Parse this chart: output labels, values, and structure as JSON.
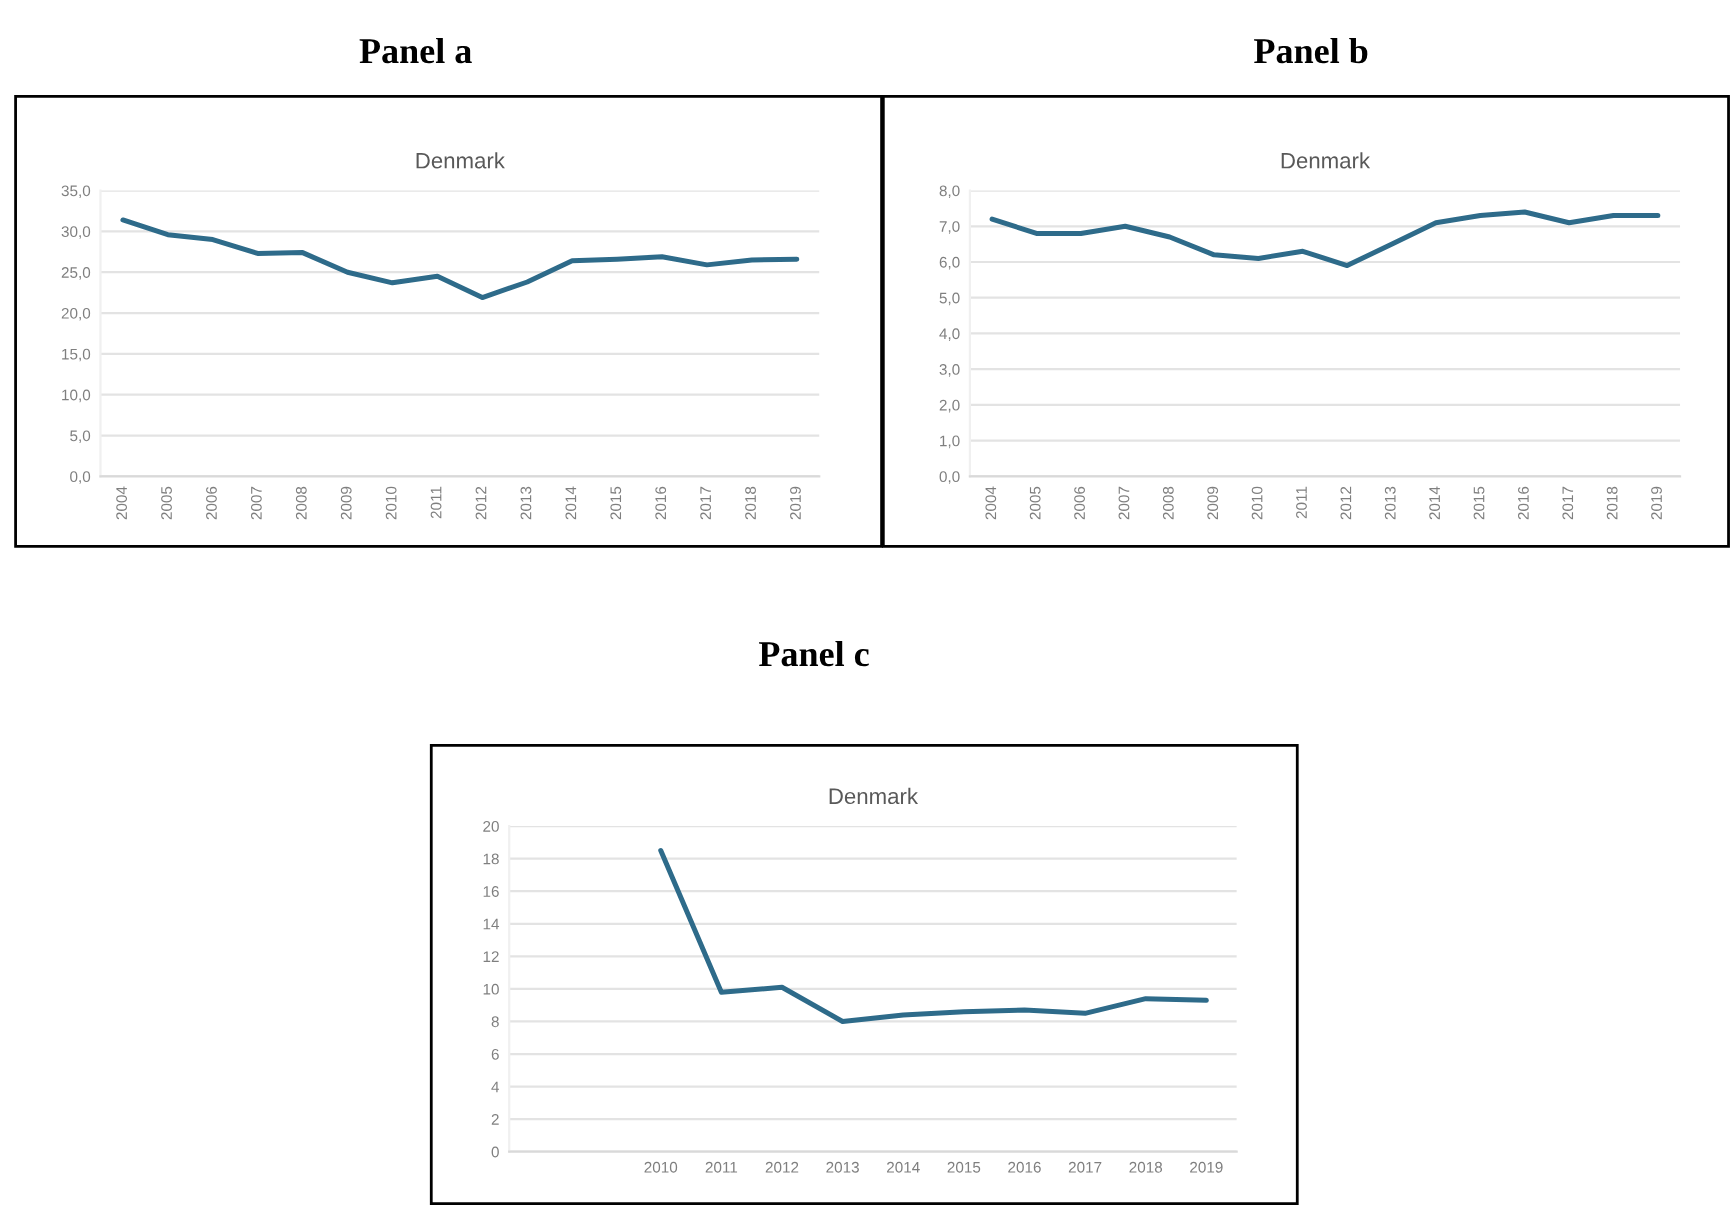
{
  "chart_data": [
    {
      "type": "line",
      "title": "Panel a",
      "subtitle": "Denmark",
      "categories": [
        "2004",
        "2005",
        "2006",
        "2007",
        "2008",
        "2009",
        "2010",
        "2011",
        "2012",
        "2013",
        "2014",
        "2015",
        "2016",
        "2017",
        "2018",
        "2019"
      ],
      "series": [
        {
          "color": "#2e6b8a",
          "values": [
            31.4,
            29.6,
            29.0,
            27.3,
            27.4,
            25.0,
            23.7,
            24.5,
            21.9,
            23.8,
            26.4,
            26.6,
            26.9,
            25.9,
            26.5,
            26.6
          ]
        }
      ],
      "ylim": [
        0,
        35
      ],
      "yticks": [
        {
          "value": 0,
          "label": "0,0"
        },
        {
          "value": 5,
          "label": "5,0"
        },
        {
          "value": 10,
          "label": "10,0"
        },
        {
          "value": 15,
          "label": "15,0"
        },
        {
          "value": 20,
          "label": "20,0"
        },
        {
          "value": 25,
          "label": "25,0"
        },
        {
          "value": 30,
          "label": "30,0"
        },
        {
          "value": 35,
          "label": "35,0"
        }
      ],
      "grid": "y"
    },
    {
      "type": "line",
      "title": "Panel b",
      "subtitle": "Denmark",
      "categories": [
        "2004",
        "2005",
        "2006",
        "2007",
        "2008",
        "2009",
        "2010",
        "2011",
        "2012",
        "2013",
        "2014",
        "2015",
        "2016",
        "2017",
        "2018",
        "2019"
      ],
      "series": [
        {
          "color": "#2e6b8a",
          "values": [
            7.2,
            6.8,
            6.8,
            7.0,
            6.7,
            6.2,
            6.1,
            6.3,
            5.9,
            6.5,
            7.1,
            7.3,
            7.4,
            7.1,
            7.3,
            7.3
          ]
        }
      ],
      "ylim": [
        0,
        8
      ],
      "yticks": [
        {
          "value": 0,
          "label": "0,0"
        },
        {
          "value": 1,
          "label": "1,0"
        },
        {
          "value": 2,
          "label": "2,0"
        },
        {
          "value": 3,
          "label": "3,0"
        },
        {
          "value": 4,
          "label": "4,0"
        },
        {
          "value": 5,
          "label": "5,0"
        },
        {
          "value": 6,
          "label": "6,0"
        },
        {
          "value": 7,
          "label": "7,0"
        },
        {
          "value": 8,
          "label": "8,0"
        }
      ],
      "grid": "y"
    },
    {
      "type": "line",
      "title": "Panel c",
      "subtitle": "Denmark",
      "categories": [
        null,
        null,
        "2010",
        "2011",
        "2012",
        "2013",
        "2014",
        "2015",
        "2016",
        "2017",
        "2018",
        "2019"
      ],
      "series": [
        {
          "color": "#2e6b8a",
          "values": [
            null,
            null,
            18.5,
            9.8,
            10.1,
            8.0,
            8.4,
            8.6,
            8.7,
            8.5,
            9.4,
            9.3
          ]
        }
      ],
      "ylim": [
        0,
        20
      ],
      "yticks": [
        0,
        2,
        4,
        6,
        8,
        10,
        12,
        14,
        16,
        18,
        20
      ],
      "grid": "y"
    }
  ]
}
